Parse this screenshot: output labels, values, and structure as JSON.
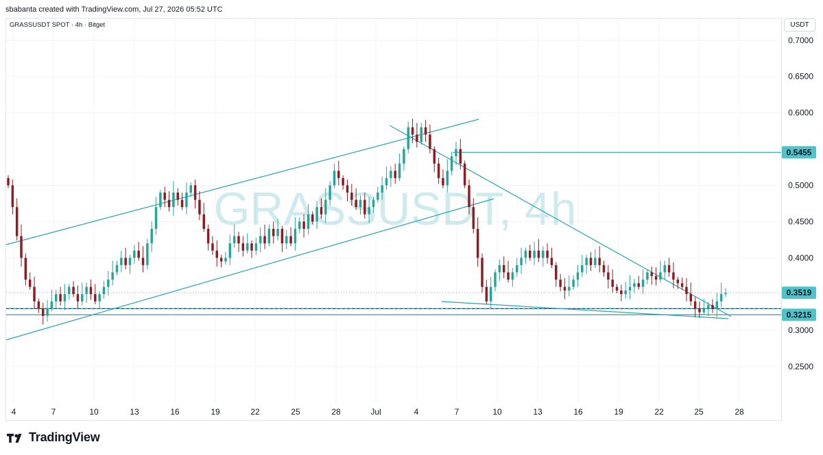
{
  "header": {
    "created_text": "sbabanta created with TradingView.com, Jul 27, 2026 05:52 UTC"
  },
  "symbol_info": {
    "text": "GRASSUSDT SPOT · 4h · Bitget"
  },
  "currency_label": "USDT",
  "watermark": "GRASSUSDT, 4h",
  "footer": {
    "brand": "TradingView",
    "logo_icon": "tradingview-logo-icon"
  },
  "colors": {
    "up": "#26a69a",
    "down": "#8b1d23",
    "trendline": "#26a4b0",
    "watermark": "rgba(38,164,176,0.22)",
    "price_label_bg": "#4fc3c9",
    "grid": "#f0f3fa"
  },
  "chart_data": {
    "type": "candlestick",
    "title": "",
    "xlabel": "",
    "ylabel": "",
    "ylim": [
      0.2,
      0.73
    ],
    "grid": true,
    "y_ticks": [
      "0.7000",
      "0.6500",
      "0.6000",
      "0.5000",
      "0.4500",
      "0.4000",
      "0.3000",
      "0.2500"
    ],
    "x_ticks": [
      "4",
      "7",
      "10",
      "13",
      "16",
      "19",
      "22",
      "25",
      "28",
      "Jul",
      "4",
      "7",
      "10",
      "13",
      "16",
      "19",
      "22",
      "25",
      "28"
    ],
    "price_labels": [
      {
        "value": 0.5455,
        "label": "0.5455"
      },
      {
        "value": 0.3519,
        "label": "0.3519"
      },
      {
        "value": 0.3215,
        "label": "0.3215"
      }
    ],
    "horizontal_levels": [
      0.5455,
      0.3519,
      0.3215,
      0.33
    ],
    "closes": [
      0.5,
      0.47,
      0.43,
      0.4,
      0.37,
      0.36,
      0.34,
      0.33,
      0.32,
      0.33,
      0.34,
      0.35,
      0.34,
      0.35,
      0.36,
      0.35,
      0.34,
      0.35,
      0.36,
      0.35,
      0.34,
      0.35,
      0.36,
      0.37,
      0.38,
      0.39,
      0.4,
      0.39,
      0.4,
      0.41,
      0.4,
      0.39,
      0.42,
      0.44,
      0.47,
      0.49,
      0.48,
      0.47,
      0.49,
      0.48,
      0.47,
      0.49,
      0.5,
      0.48,
      0.46,
      0.44,
      0.42,
      0.41,
      0.4,
      0.395,
      0.4,
      0.42,
      0.43,
      0.42,
      0.41,
      0.42,
      0.41,
      0.42,
      0.43,
      0.42,
      0.44,
      0.43,
      0.44,
      0.42,
      0.43,
      0.42,
      0.44,
      0.45,
      0.44,
      0.46,
      0.45,
      0.47,
      0.46,
      0.48,
      0.5,
      0.52,
      0.51,
      0.5,
      0.49,
      0.48,
      0.47,
      0.48,
      0.46,
      0.47,
      0.48,
      0.49,
      0.5,
      0.51,
      0.52,
      0.51,
      0.53,
      0.55,
      0.58,
      0.57,
      0.56,
      0.58,
      0.57,
      0.55,
      0.53,
      0.51,
      0.5,
      0.52,
      0.54,
      0.55,
      0.53,
      0.5,
      0.47,
      0.44,
      0.4,
      0.36,
      0.34,
      0.36,
      0.38,
      0.39,
      0.38,
      0.37,
      0.38,
      0.39,
      0.4,
      0.41,
      0.4,
      0.41,
      0.4,
      0.41,
      0.4,
      0.39,
      0.37,
      0.36,
      0.355,
      0.36,
      0.37,
      0.38,
      0.39,
      0.4,
      0.39,
      0.4,
      0.39,
      0.38,
      0.37,
      0.36,
      0.355,
      0.35,
      0.355,
      0.36,
      0.365,
      0.36,
      0.37,
      0.38,
      0.375,
      0.37,
      0.38,
      0.39,
      0.38,
      0.37,
      0.365,
      0.36,
      0.35,
      0.34,
      0.33,
      0.325,
      0.33,
      0.335,
      0.33,
      0.34,
      0.35,
      0.3519
    ]
  }
}
